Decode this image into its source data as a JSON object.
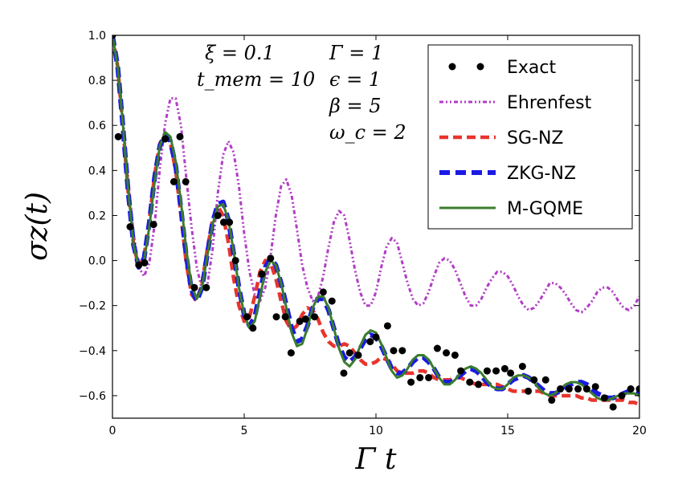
{
  "chart_data": {
    "type": "line",
    "xlabel": "Γ t",
    "ylabel": "σz(t)",
    "xlim": [
      0,
      20
    ],
    "ylim": [
      -0.7,
      1.0
    ],
    "xticks": [
      0,
      5,
      10,
      15,
      20
    ],
    "yticks": [
      1.0,
      0.8,
      0.6,
      0.4,
      0.2,
      0.0,
      -0.2,
      -0.4,
      -0.6
    ],
    "grid": false,
    "legend_position": "top-right",
    "annotations": {
      "xi": "ξ = 0.1",
      "tmem": "t_mem = 10",
      "gamma": "Γ = 1",
      "epsilon": "ϵ = 1",
      "beta": "β = 5",
      "omega": "ω_c = 2"
    },
    "series": [
      {
        "name": "Exact",
        "style": "markers",
        "color": "#000000",
        "x": [
          0.0,
          0.22,
          0.67,
          1.0,
          1.22,
          1.56,
          2.0,
          2.33,
          2.56,
          2.78,
          3.11,
          3.56,
          4.0,
          4.22,
          4.44,
          4.67,
          5.11,
          5.33,
          5.67,
          6.0,
          6.22,
          6.56,
          6.78,
          7.11,
          7.33,
          7.67,
          8.0,
          8.33,
          8.78,
          9.0,
          9.33,
          9.78,
          10.0,
          10.44,
          10.67,
          11.0,
          11.33,
          11.67,
          12.0,
          12.33,
          12.67,
          13.0,
          13.22,
          13.56,
          13.89,
          14.22,
          14.56,
          14.89,
          15.11,
          15.56,
          15.78,
          16.0,
          16.44,
          16.67,
          17.0,
          17.33,
          17.67,
          18.0,
          18.33,
          18.67,
          19.0,
          19.33,
          19.67,
          20.0
        ],
        "y": [
          1.0,
          0.55,
          0.15,
          -0.02,
          -0.01,
          0.16,
          0.54,
          0.35,
          0.55,
          0.35,
          -0.12,
          -0.12,
          0.2,
          0.17,
          0.17,
          0.0,
          -0.25,
          -0.3,
          -0.06,
          0.01,
          -0.25,
          -0.25,
          -0.41,
          -0.27,
          -0.26,
          -0.25,
          -0.14,
          -0.18,
          -0.5,
          -0.41,
          -0.42,
          -0.36,
          -0.34,
          -0.29,
          -0.4,
          -0.4,
          -0.54,
          -0.52,
          -0.52,
          -0.39,
          -0.41,
          -0.42,
          -0.49,
          -0.54,
          -0.55,
          -0.49,
          -0.49,
          -0.48,
          -0.5,
          -0.47,
          -0.58,
          -0.53,
          -0.53,
          -0.62,
          -0.57,
          -0.57,
          -0.57,
          -0.57,
          -0.56,
          -0.61,
          -0.65,
          -0.6,
          -0.57,
          -0.57
        ]
      },
      {
        "name": "Ehrenfest",
        "style": "dash-dot-dot",
        "color": "#b23dc6",
        "x": [
          0.0,
          0.2,
          0.4,
          0.6,
          0.8,
          1.0,
          1.2,
          1.4,
          1.6,
          1.8,
          2.0,
          2.2,
          2.4,
          2.6,
          2.8,
          3.0,
          3.2,
          3.4,
          3.6,
          3.8,
          4.0,
          4.2,
          4.4,
          4.6,
          4.8,
          5.0,
          5.2,
          5.4,
          5.6,
          5.8,
          6.0,
          6.2,
          6.4,
          6.6,
          6.8,
          7.0,
          7.2,
          7.4,
          7.6,
          7.8,
          8.0,
          8.2,
          8.4,
          8.6,
          8.8,
          9.0,
          9.2,
          9.4,
          9.6,
          9.8,
          10.0,
          10.2,
          10.4,
          10.6,
          10.8,
          11.0,
          11.2,
          11.4,
          11.6,
          11.8,
          12.0,
          12.2,
          12.4,
          12.6,
          12.8,
          13.0,
          13.2,
          13.4,
          13.6,
          13.8,
          14.0,
          14.2,
          14.4,
          14.6,
          14.8,
          15.0,
          15.2,
          15.4,
          15.6,
          15.8,
          16.0,
          16.2,
          16.4,
          16.6,
          16.8,
          17.0,
          17.2,
          17.4,
          17.6,
          17.8,
          18.0,
          18.2,
          18.4,
          18.6,
          18.8,
          19.0,
          19.2,
          19.4,
          19.6,
          19.8,
          20.0
        ],
        "y": [
          1.0,
          0.87,
          0.63,
          0.36,
          0.12,
          -0.03,
          -0.07,
          -0.01,
          0.16,
          0.41,
          0.61,
          0.72,
          0.72,
          0.6,
          0.37,
          0.15,
          -0.03,
          -0.13,
          -0.11,
          0.05,
          0.3,
          0.47,
          0.53,
          0.48,
          0.33,
          0.12,
          -0.05,
          -0.15,
          -0.18,
          -0.12,
          0.02,
          0.2,
          0.33,
          0.36,
          0.29,
          0.14,
          -0.02,
          -0.12,
          -0.18,
          -0.16,
          -0.07,
          0.06,
          0.17,
          0.22,
          0.2,
          0.09,
          -0.04,
          -0.14,
          -0.2,
          -0.2,
          -0.14,
          -0.03,
          0.06,
          0.1,
          0.08,
          -0.01,
          -0.1,
          -0.17,
          -0.2,
          -0.19,
          -0.14,
          -0.07,
          -0.01,
          0.01,
          0.0,
          -0.04,
          -0.1,
          -0.16,
          -0.2,
          -0.2,
          -0.17,
          -0.12,
          -0.08,
          -0.05,
          -0.05,
          -0.07,
          -0.11,
          -0.16,
          -0.2,
          -0.22,
          -0.21,
          -0.18,
          -0.14,
          -0.1,
          -0.1,
          -0.12,
          -0.15,
          -0.19,
          -0.22,
          -0.23,
          -0.21,
          -0.18,
          -0.14,
          -0.12,
          -0.12,
          -0.14,
          -0.18,
          -0.21,
          -0.22,
          -0.2,
          -0.16
        ]
      },
      {
        "name": "SG-NZ",
        "style": "dashed",
        "color": "#e8342c",
        "x": [
          0.0,
          0.2,
          0.4,
          0.6,
          0.8,
          1.0,
          1.2,
          1.4,
          1.6,
          1.8,
          2.0,
          2.2,
          2.4,
          2.6,
          2.8,
          3.0,
          3.2,
          3.4,
          3.6,
          3.8,
          4.0,
          4.2,
          4.4,
          4.6,
          4.8,
          5.0,
          5.2,
          5.4,
          5.6,
          5.8,
          6.0,
          6.2,
          6.4,
          6.6,
          6.8,
          7.0,
          7.2,
          7.4,
          7.6,
          7.8,
          8.0,
          8.2,
          8.4,
          8.6,
          8.8,
          9.0,
          9.2,
          9.4,
          9.6,
          9.8,
          10.0,
          10.2,
          10.4,
          10.6,
          10.8,
          11.0,
          11.2,
          11.4,
          11.6,
          11.8,
          12.0,
          12.2,
          12.4,
          12.6,
          12.8,
          13.0,
          13.2,
          13.4,
          13.6,
          13.8,
          14.0,
          14.2,
          14.4,
          14.6,
          14.8,
          15.0,
          15.2,
          15.4,
          15.6,
          15.8,
          16.0,
          16.2,
          16.4,
          16.6,
          16.8,
          17.0,
          17.2,
          17.4,
          17.6,
          17.8,
          18.0,
          18.2,
          18.4,
          18.6,
          18.8,
          19.0,
          19.2,
          19.4,
          19.6,
          19.8,
          20.0
        ],
        "y": [
          1.0,
          0.86,
          0.59,
          0.3,
          0.07,
          -0.03,
          0.02,
          0.18,
          0.38,
          0.52,
          0.56,
          0.52,
          0.4,
          0.2,
          -0.01,
          -0.15,
          -0.18,
          -0.1,
          0.05,
          0.18,
          0.24,
          0.2,
          0.08,
          -0.08,
          -0.2,
          -0.27,
          -0.25,
          -0.16,
          -0.05,
          0.0,
          -0.01,
          -0.08,
          -0.18,
          -0.27,
          -0.31,
          -0.29,
          -0.24,
          -0.21,
          -0.22,
          -0.26,
          -0.32,
          -0.36,
          -0.38,
          -0.38,
          -0.37,
          -0.38,
          -0.41,
          -0.44,
          -0.46,
          -0.46,
          -0.45,
          -0.43,
          -0.44,
          -0.46,
          -0.49,
          -0.5,
          -0.5,
          -0.5,
          -0.49,
          -0.49,
          -0.5,
          -0.52,
          -0.53,
          -0.53,
          -0.53,
          -0.52,
          -0.52,
          -0.53,
          -0.54,
          -0.55,
          -0.55,
          -0.55,
          -0.55,
          -0.55,
          -0.56,
          -0.57,
          -0.58,
          -0.58,
          -0.58,
          -0.58,
          -0.58,
          -0.58,
          -0.59,
          -0.6,
          -0.6,
          -0.6,
          -0.6,
          -0.6,
          -0.6,
          -0.61,
          -0.61,
          -0.62,
          -0.62,
          -0.62,
          -0.62,
          -0.62,
          -0.62,
          -0.62,
          -0.63,
          -0.63,
          -0.64
        ]
      },
      {
        "name": "ZKG-NZ",
        "style": "dashed-thick",
        "color": "#1a1ae6",
        "x": [
          0.0,
          0.2,
          0.4,
          0.6,
          0.8,
          1.0,
          1.2,
          1.4,
          1.6,
          1.8,
          2.0,
          2.2,
          2.4,
          2.6,
          2.8,
          3.0,
          3.2,
          3.4,
          3.6,
          3.8,
          4.0,
          4.2,
          4.4,
          4.6,
          4.8,
          5.0,
          5.2,
          5.4,
          5.6,
          5.8,
          6.0,
          6.2,
          6.4,
          6.6,
          6.8,
          7.0,
          7.2,
          7.4,
          7.6,
          7.8,
          8.0,
          8.2,
          8.4,
          8.6,
          8.8,
          9.0,
          9.2,
          9.4,
          9.6,
          9.8,
          10.0,
          10.2,
          10.4,
          10.6,
          10.8,
          11.0,
          11.2,
          11.4,
          11.6,
          11.8,
          12.0,
          12.2,
          12.4,
          12.6,
          12.8,
          13.0,
          13.2,
          13.4,
          13.6,
          13.8,
          14.0,
          14.2,
          14.4,
          14.6,
          14.8,
          15.0,
          15.2,
          15.4,
          15.6,
          15.8,
          16.0,
          16.2,
          16.4,
          16.6,
          16.8,
          17.0,
          17.2,
          17.4,
          17.6,
          17.8,
          18.0,
          18.2,
          18.4,
          18.6,
          18.8,
          19.0,
          19.2,
          19.4,
          19.6,
          19.8,
          20.0
        ],
        "y": [
          1.0,
          0.86,
          0.59,
          0.3,
          0.07,
          -0.03,
          0.01,
          0.17,
          0.37,
          0.51,
          0.56,
          0.53,
          0.42,
          0.23,
          0.02,
          -0.13,
          -0.18,
          -0.12,
          0.03,
          0.17,
          0.25,
          0.26,
          0.18,
          0.03,
          -0.12,
          -0.24,
          -0.29,
          -0.25,
          -0.14,
          -0.03,
          0.01,
          -0.02,
          -0.1,
          -0.2,
          -0.3,
          -0.36,
          -0.35,
          -0.29,
          -0.21,
          -0.17,
          -0.17,
          -0.22,
          -0.3,
          -0.38,
          -0.43,
          -0.45,
          -0.43,
          -0.39,
          -0.35,
          -0.33,
          -0.34,
          -0.38,
          -0.43,
          -0.48,
          -0.5,
          -0.5,
          -0.48,
          -0.45,
          -0.43,
          -0.43,
          -0.45,
          -0.48,
          -0.52,
          -0.54,
          -0.54,
          -0.53,
          -0.51,
          -0.49,
          -0.48,
          -0.49,
          -0.51,
          -0.54,
          -0.56,
          -0.57,
          -0.57,
          -0.55,
          -0.53,
          -0.52,
          -0.51,
          -0.52,
          -0.54,
          -0.56,
          -0.58,
          -0.59,
          -0.59,
          -0.58,
          -0.56,
          -0.55,
          -0.54,
          -0.54,
          -0.55,
          -0.57,
          -0.59,
          -0.6,
          -0.61,
          -0.61,
          -0.6,
          -0.59,
          -0.58,
          -0.58,
          -0.59
        ]
      },
      {
        "name": "M-GQME",
        "style": "solid",
        "color": "#3a7d2c",
        "x": [
          0.0,
          0.2,
          0.4,
          0.6,
          0.8,
          1.0,
          1.2,
          1.4,
          1.6,
          1.8,
          2.0,
          2.2,
          2.4,
          2.6,
          2.8,
          3.0,
          3.2,
          3.4,
          3.6,
          3.8,
          4.0,
          4.2,
          4.4,
          4.6,
          4.8,
          5.0,
          5.2,
          5.4,
          5.6,
          5.8,
          6.0,
          6.2,
          6.4,
          6.6,
          6.8,
          7.0,
          7.2,
          7.4,
          7.6,
          7.8,
          8.0,
          8.2,
          8.4,
          8.6,
          8.8,
          9.0,
          9.2,
          9.4,
          9.6,
          9.8,
          10.0,
          10.2,
          10.4,
          10.6,
          10.8,
          11.0,
          11.2,
          11.4,
          11.6,
          11.8,
          12.0,
          12.2,
          12.4,
          12.6,
          12.8,
          13.0,
          13.2,
          13.4,
          13.6,
          13.8,
          14.0,
          14.2,
          14.4,
          14.6,
          14.8,
          15.0,
          15.2,
          15.4,
          15.6,
          15.8,
          16.0,
          16.2,
          16.4,
          16.6,
          16.8,
          17.0,
          17.2,
          17.4,
          17.6,
          17.8,
          18.0,
          18.2,
          18.4,
          18.6,
          18.8,
          19.0,
          19.2,
          19.4,
          19.6,
          19.8,
          20.0
        ],
        "y": [
          1.0,
          0.86,
          0.6,
          0.31,
          0.07,
          -0.03,
          0.0,
          0.15,
          0.35,
          0.51,
          0.57,
          0.55,
          0.44,
          0.26,
          0.05,
          -0.11,
          -0.17,
          -0.12,
          0.02,
          0.16,
          0.24,
          0.25,
          0.18,
          0.04,
          -0.12,
          -0.24,
          -0.3,
          -0.27,
          -0.16,
          -0.05,
          0.0,
          -0.02,
          -0.1,
          -0.21,
          -0.32,
          -0.38,
          -0.37,
          -0.3,
          -0.21,
          -0.16,
          -0.16,
          -0.21,
          -0.3,
          -0.39,
          -0.45,
          -0.47,
          -0.44,
          -0.38,
          -0.33,
          -0.31,
          -0.32,
          -0.37,
          -0.43,
          -0.49,
          -0.52,
          -0.51,
          -0.48,
          -0.44,
          -0.42,
          -0.42,
          -0.44,
          -0.48,
          -0.52,
          -0.55,
          -0.55,
          -0.53,
          -0.5,
          -0.48,
          -0.47,
          -0.48,
          -0.5,
          -0.53,
          -0.56,
          -0.57,
          -0.57,
          -0.55,
          -0.52,
          -0.51,
          -0.51,
          -0.52,
          -0.54,
          -0.57,
          -0.59,
          -0.6,
          -0.59,
          -0.57,
          -0.55,
          -0.54,
          -0.54,
          -0.55,
          -0.57,
          -0.59,
          -0.61,
          -0.62,
          -0.62,
          -0.61,
          -0.6,
          -0.59,
          -0.59,
          -0.59,
          -0.6
        ]
      }
    ]
  }
}
